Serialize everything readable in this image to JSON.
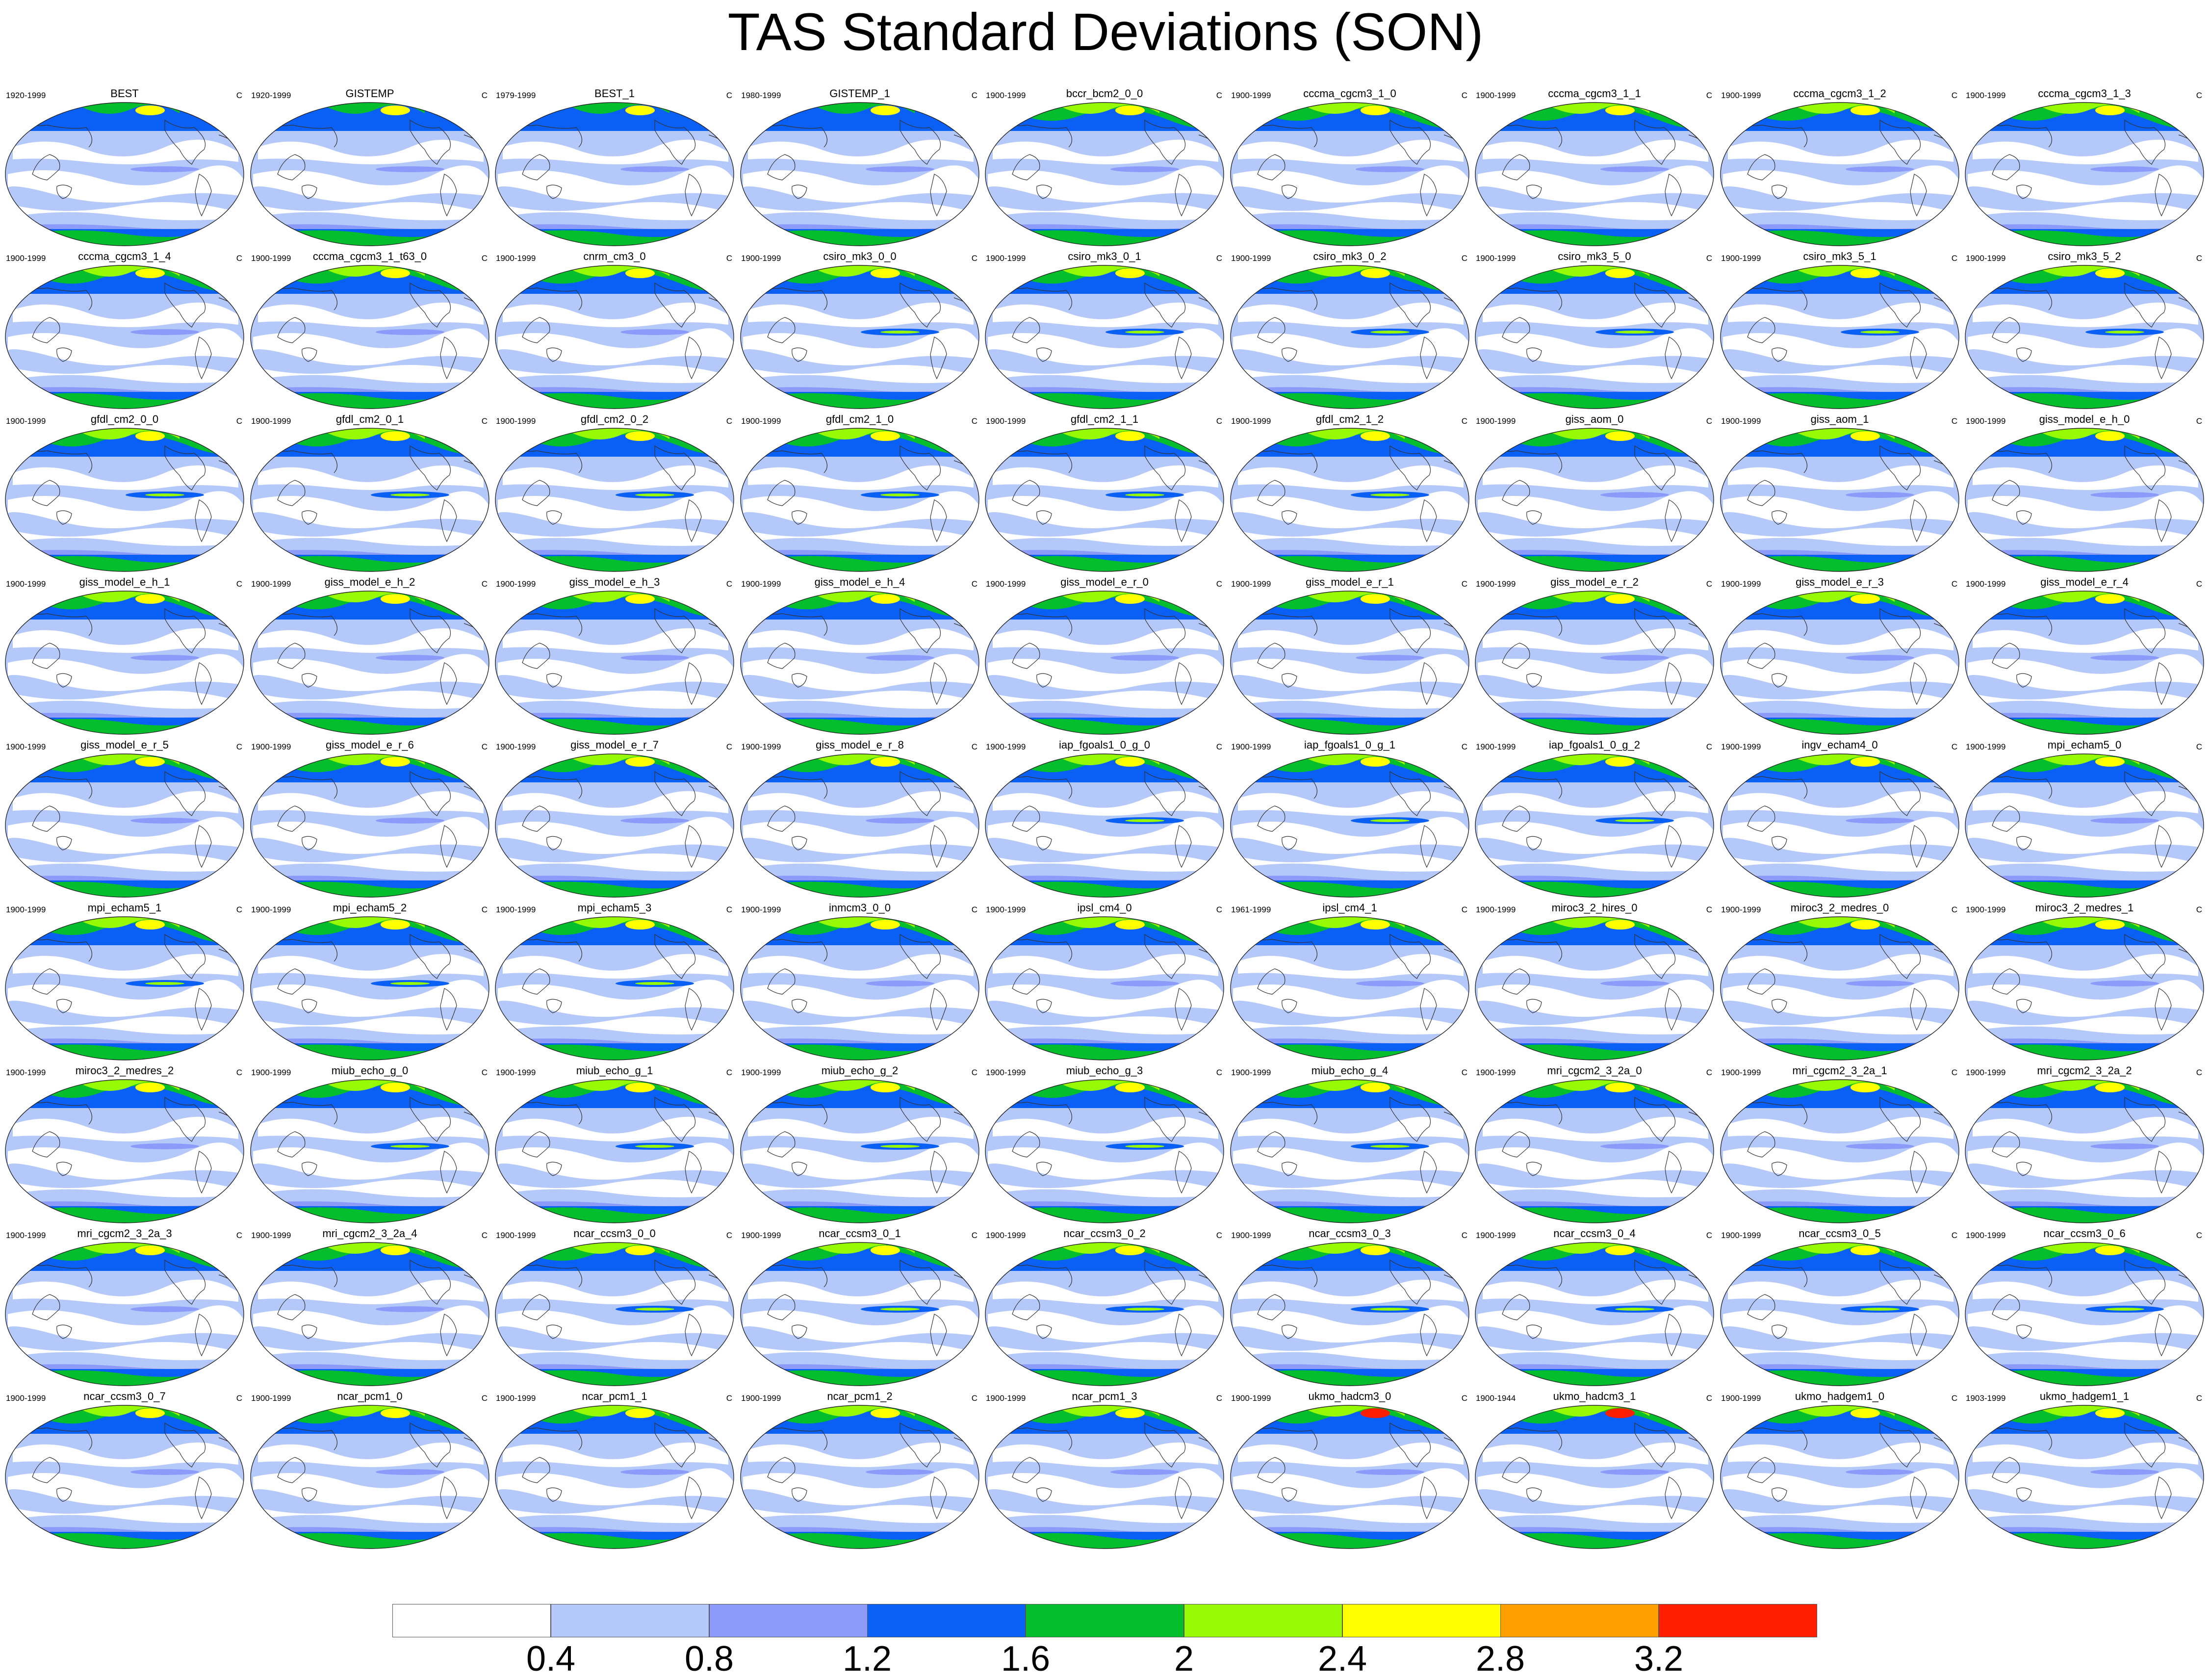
{
  "title": "TAS Standard Deviations (SON)",
  "unit": "C",
  "colorbar": {
    "colors": [
      "#ffffff",
      "#b4c8fa",
      "#8c9bfa",
      "#0a5ff5",
      "#05be2d",
      "#96fa05",
      "#ffff00",
      "#ffa000",
      "#ff1e00"
    ],
    "ticks": [
      "0.4",
      "0.8",
      "1.2",
      "1.6",
      "2",
      "2.4",
      "2.8",
      "3.2"
    ]
  },
  "panels": [
    {
      "name": "BEST",
      "period": "1920-1999"
    },
    {
      "name": "GISTEMP",
      "period": "1920-1999"
    },
    {
      "name": "BEST_1",
      "period": "1979-1999"
    },
    {
      "name": "GISTEMP_1",
      "period": "1980-1999"
    },
    {
      "name": "bccr_bcm2_0_0",
      "period": "1900-1999"
    },
    {
      "name": "cccma_cgcm3_1_0",
      "period": "1900-1999"
    },
    {
      "name": "cccma_cgcm3_1_1",
      "period": "1900-1999"
    },
    {
      "name": "cccma_cgcm3_1_2",
      "period": "1900-1999"
    },
    {
      "name": "cccma_cgcm3_1_3",
      "period": "1900-1999"
    },
    {
      "name": "cccma_cgcm3_1_4",
      "period": "1900-1999"
    },
    {
      "name": "cccma_cgcm3_1_t63_0",
      "period": "1900-1999"
    },
    {
      "name": "cnrm_cm3_0",
      "period": "1900-1999"
    },
    {
      "name": "csiro_mk3_0_0",
      "period": "1900-1999"
    },
    {
      "name": "csiro_mk3_0_1",
      "period": "1900-1999"
    },
    {
      "name": "csiro_mk3_0_2",
      "period": "1900-1999"
    },
    {
      "name": "csiro_mk3_5_0",
      "period": "1900-1999"
    },
    {
      "name": "csiro_mk3_5_1",
      "period": "1900-1999"
    },
    {
      "name": "csiro_mk3_5_2",
      "period": "1900-1999"
    },
    {
      "name": "gfdl_cm2_0_0",
      "period": "1900-1999"
    },
    {
      "name": "gfdl_cm2_0_1",
      "period": "1900-1999"
    },
    {
      "name": "gfdl_cm2_0_2",
      "period": "1900-1999"
    },
    {
      "name": "gfdl_cm2_1_0",
      "period": "1900-1999"
    },
    {
      "name": "gfdl_cm2_1_1",
      "period": "1900-1999"
    },
    {
      "name": "gfdl_cm2_1_2",
      "period": "1900-1999"
    },
    {
      "name": "giss_aom_0",
      "period": "1900-1999"
    },
    {
      "name": "giss_aom_1",
      "period": "1900-1999"
    },
    {
      "name": "giss_model_e_h_0",
      "period": "1900-1999"
    },
    {
      "name": "giss_model_e_h_1",
      "period": "1900-1999"
    },
    {
      "name": "giss_model_e_h_2",
      "period": "1900-1999"
    },
    {
      "name": "giss_model_e_h_3",
      "period": "1900-1999"
    },
    {
      "name": "giss_model_e_h_4",
      "period": "1900-1999"
    },
    {
      "name": "giss_model_e_r_0",
      "period": "1900-1999"
    },
    {
      "name": "giss_model_e_r_1",
      "period": "1900-1999"
    },
    {
      "name": "giss_model_e_r_2",
      "period": "1900-1999"
    },
    {
      "name": "giss_model_e_r_3",
      "period": "1900-1999"
    },
    {
      "name": "giss_model_e_r_4",
      "period": "1900-1999"
    },
    {
      "name": "giss_model_e_r_5",
      "period": "1900-1999"
    },
    {
      "name": "giss_model_e_r_6",
      "period": "1900-1999"
    },
    {
      "name": "giss_model_e_r_7",
      "period": "1900-1999"
    },
    {
      "name": "giss_model_e_r_8",
      "period": "1900-1999"
    },
    {
      "name": "iap_fgoals1_0_g_0",
      "period": "1900-1999"
    },
    {
      "name": "iap_fgoals1_0_g_1",
      "period": "1900-1999"
    },
    {
      "name": "iap_fgoals1_0_g_2",
      "period": "1900-1999"
    },
    {
      "name": "ingv_echam4_0",
      "period": "1900-1999"
    },
    {
      "name": "mpi_echam5_0",
      "period": "1900-1999"
    },
    {
      "name": "mpi_echam5_1",
      "period": "1900-1999"
    },
    {
      "name": "mpi_echam5_2",
      "period": "1900-1999"
    },
    {
      "name": "mpi_echam5_3",
      "period": "1900-1999"
    },
    {
      "name": "inmcm3_0_0",
      "period": "1900-1999"
    },
    {
      "name": "ipsl_cm4_0",
      "period": "1900-1999"
    },
    {
      "name": "ipsl_cm4_1",
      "period": "1961-1999"
    },
    {
      "name": "miroc3_2_hires_0",
      "period": "1900-1999"
    },
    {
      "name": "miroc3_2_medres_0",
      "period": "1900-1999"
    },
    {
      "name": "miroc3_2_medres_1",
      "period": "1900-1999"
    },
    {
      "name": "miroc3_2_medres_2",
      "period": "1900-1999"
    },
    {
      "name": "miub_echo_g_0",
      "period": "1900-1999"
    },
    {
      "name": "miub_echo_g_1",
      "period": "1900-1999"
    },
    {
      "name": "miub_echo_g_2",
      "period": "1900-1999"
    },
    {
      "name": "miub_echo_g_3",
      "period": "1900-1999"
    },
    {
      "name": "miub_echo_g_4",
      "period": "1900-1999"
    },
    {
      "name": "mri_cgcm2_3_2a_0",
      "period": "1900-1999"
    },
    {
      "name": "mri_cgcm2_3_2a_1",
      "period": "1900-1999"
    },
    {
      "name": "mri_cgcm2_3_2a_2",
      "period": "1900-1999"
    },
    {
      "name": "mri_cgcm2_3_2a_3",
      "period": "1900-1999"
    },
    {
      "name": "mri_cgcm2_3_2a_4",
      "period": "1900-1999"
    },
    {
      "name": "ncar_ccsm3_0_0",
      "period": "1900-1999"
    },
    {
      "name": "ncar_ccsm3_0_1",
      "period": "1900-1999"
    },
    {
      "name": "ncar_ccsm3_0_2",
      "period": "1900-1999"
    },
    {
      "name": "ncar_ccsm3_0_3",
      "period": "1900-1999"
    },
    {
      "name": "ncar_ccsm3_0_4",
      "period": "1900-1999"
    },
    {
      "name": "ncar_ccsm3_0_5",
      "period": "1900-1999"
    },
    {
      "name": "ncar_ccsm3_0_6",
      "period": "1900-1999"
    },
    {
      "name": "ncar_ccsm3_0_7",
      "period": "1900-1999"
    },
    {
      "name": "ncar_pcm1_0",
      "period": "1900-1999"
    },
    {
      "name": "ncar_pcm1_1",
      "period": "1900-1999"
    },
    {
      "name": "ncar_pcm1_2",
      "period": "1900-1999"
    },
    {
      "name": "ncar_pcm1_3",
      "period": "1900-1999"
    },
    {
      "name": "ukmo_hadcm3_0",
      "period": "1900-1999"
    },
    {
      "name": "ukmo_hadcm3_1",
      "period": "1900-1944"
    },
    {
      "name": "ukmo_hadgem1_0",
      "period": "1900-1999"
    },
    {
      "name": "ukmo_hadgem1_1",
      "period": "1903-1999"
    }
  ]
}
